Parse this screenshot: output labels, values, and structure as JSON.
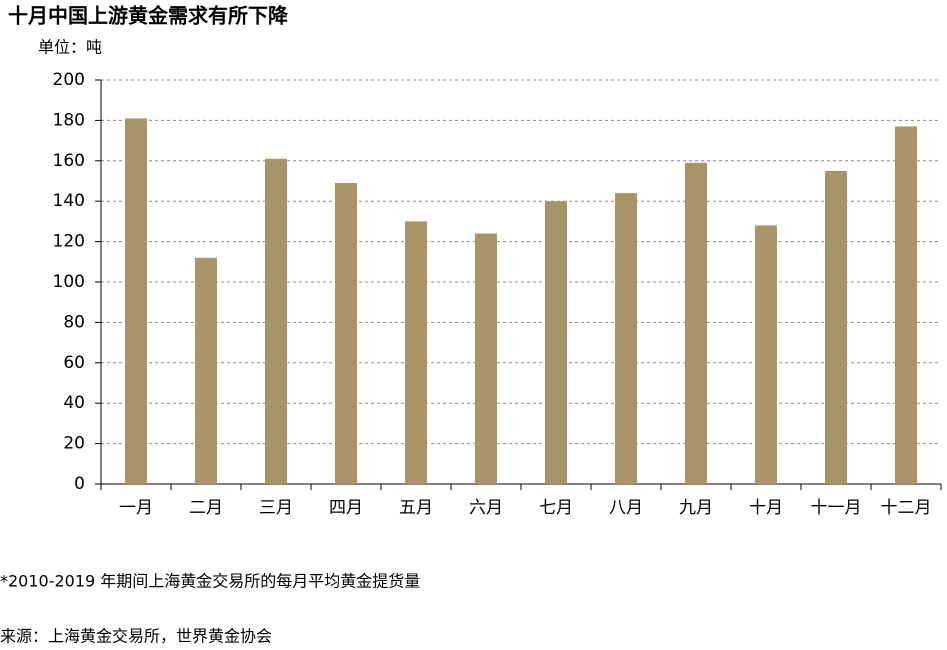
{
  "chart_data": {
    "type": "bar",
    "title": "十月中国上游黄金需求有所下降",
    "unit_label": "单位：吨",
    "categories": [
      "一月",
      "二月",
      "三月",
      "四月",
      "五月",
      "六月",
      "七月",
      "八月",
      "九月",
      "十月",
      "十一月",
      "十二月"
    ],
    "values": [
      181,
      112,
      161,
      149,
      130,
      124,
      140,
      144,
      159,
      128,
      155,
      177
    ],
    "color": "#a89468",
    "ylim": [
      0,
      200
    ],
    "yticks": [
      0,
      20,
      40,
      60,
      80,
      100,
      120,
      140,
      160,
      180,
      200
    ],
    "grid": true,
    "notes": [
      "*2010-2019 年期间上海黄金交易所的每月平均黄金提货量",
      "来源：上海黄金交易所，世界黄金协会"
    ]
  }
}
